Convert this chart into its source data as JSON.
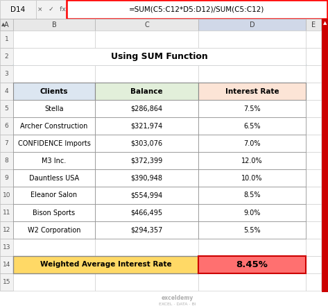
{
  "title": "Using SUM Function",
  "formula_bar_cell": "D14",
  "formula_bar_formula": "=SUM(C5:C12*D5:D12)/SUM(C5:C12)",
  "col_headers": [
    "A",
    "B",
    "C",
    "D",
    "E"
  ],
  "table_headers": [
    "Clients",
    "Balance",
    "Interest Rate"
  ],
  "clients": [
    "Stella",
    "Archer Construction",
    "CONFIDENCE Imports",
    "M3 Inc.",
    "Dauntless USA",
    "Eleanor Salon",
    "Bison Sports",
    "W2 Corporation"
  ],
  "balances": [
    "$286,864",
    "$321,974",
    "$303,076",
    "$372,399",
    "$390,948",
    "$554,994",
    "$466,495",
    "$294,357"
  ],
  "rates": [
    "7.5%",
    "6.5%",
    "7.0%",
    "12.0%",
    "10.0%",
    "8.5%",
    "9.0%",
    "5.5%"
  ],
  "summary_label": "Weighted Average Interest Rate",
  "summary_value": "8.45%",
  "bg_color": "#ffffff",
  "header_clients_bg": "#dce6f1",
  "header_balance_bg": "#e2efda",
  "header_rate_bg": "#fce4d6",
  "summary_row_bg": "#ffd966",
  "summary_value_bg": "#ff7070",
  "cell_ref_bg": "#f2f2f2",
  "col_header_bg": "#e8e8e8",
  "col_header_D_bg": "#d0d8e8",
  "row_num_bg": "#f2f2f2",
  "grid_line_color": "#bfbfbf",
  "formula_border_color": "#ff0000",
  "scrollbar_color": "#cc0000",
  "exceldemy_text": "exceldemy",
  "exceldemy_sub": "EXCEL · DATA · BI"
}
